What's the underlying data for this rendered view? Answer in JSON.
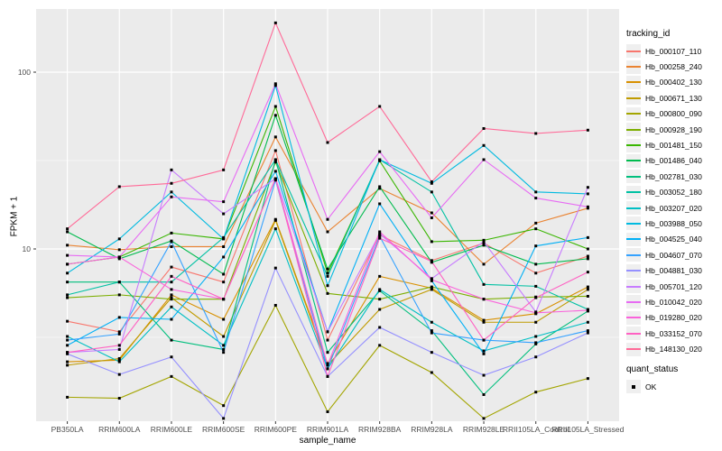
{
  "figure": {
    "background": "#FFFFFF",
    "panel_background": "#EBEBEB",
    "grid_color": "#FFFFFF",
    "tick_color": "#333333",
    "axis_text_color": "#4D4D4D",
    "point_color": "#000000"
  },
  "axes": {
    "y_title": "FPKM + 1",
    "x_title": "sample_name",
    "y_tick_labels": [
      "100",
      "10"
    ],
    "y_tick_values": [
      100,
      10
    ],
    "y_minor_values": [
      31.623,
      3.1623
    ]
  },
  "legend": {
    "tracking_title": "tracking_id",
    "quant_title": "quant_status",
    "quant_items": [
      {
        "label": "OK"
      }
    ]
  },
  "chart_data": {
    "type": "line",
    "title": "",
    "xlabel": "sample_name",
    "ylabel": "FPKM + 1",
    "y_scale": "log10",
    "ylim": [
      1,
      230
    ],
    "grid": true,
    "legend_position": "right",
    "x_categories": [
      "PB350LA",
      "RRIM600LA",
      "RRIM600LE",
      "RRIM600SE",
      "RRIM600PE",
      "RRIM901LA",
      "RRIM928BA",
      "RRIM928LA",
      "RRIM928LE",
      "RRII105LA_Control",
      "RRII105LA_Stressed"
    ],
    "series": [
      {
        "name": "Hb_000107_110",
        "color": "#F8766D",
        "values": [
          3.9,
          3.4,
          7.9,
          6.5,
          36,
          3.05,
          12,
          8.6,
          10.8,
          7.3,
          9.1
        ]
      },
      {
        "name": "Hb_000258_240",
        "color": "#EA8331",
        "values": [
          10.5,
          9.9,
          10.3,
          10.3,
          43,
          12.5,
          22,
          16,
          8.2,
          14,
          17
        ]
      },
      {
        "name": "Hb_000402_130",
        "color": "#D89000",
        "values": [
          2.3,
          2.35,
          5.5,
          4.0,
          14.7,
          2.25,
          7.0,
          6.0,
          3.95,
          4.3,
          6.1
        ]
      },
      {
        "name": "Hb_000671_130",
        "color": "#C09B00",
        "values": [
          2.2,
          2.4,
          5.3,
          3.2,
          14.5,
          2.2,
          4.55,
          5.9,
          3.85,
          3.85,
          5.9
        ]
      },
      {
        "name": "Hb_000800_090",
        "color": "#A3A500",
        "values": [
          1.45,
          1.43,
          1.9,
          1.3,
          4.8,
          1.2,
          2.85,
          2.0,
          1.1,
          1.55,
          1.85
        ]
      },
      {
        "name": "Hb_000928_190",
        "color": "#7CAE00",
        "values": [
          5.3,
          5.5,
          5.2,
          5.2,
          31,
          5.6,
          5.2,
          6.1,
          5.2,
          5.35,
          5.4
        ]
      },
      {
        "name": "Hb_001481_150",
        "color": "#39B600",
        "values": [
          8.2,
          9.0,
          12.3,
          11.4,
          64,
          7.3,
          31.5,
          11,
          11.2,
          13,
          10
        ]
      },
      {
        "name": "Hb_001486_040",
        "color": "#00BB4E",
        "values": [
          12.5,
          8.8,
          11.1,
          7.2,
          57,
          7.7,
          22.5,
          8.4,
          10.5,
          8.2,
          8.8
        ]
      },
      {
        "name": "Hb_002781_030",
        "color": "#00BF7D",
        "values": [
          6.5,
          6.5,
          3.05,
          2.7,
          32,
          2.6,
          5.8,
          3.45,
          1.5,
          2.9,
          4.45
        ]
      },
      {
        "name": "Hb_003052_180",
        "color": "#00C1A3",
        "values": [
          5.5,
          6.5,
          6.5,
          11.6,
          32,
          7.0,
          32,
          21,
          6.3,
          6.15,
          4.55
        ]
      },
      {
        "name": "Hb_003207_020",
        "color": "#00BFC4",
        "values": [
          3.2,
          2.3,
          4.7,
          2.85,
          13,
          2.1,
          5.9,
          3.85,
          2.65,
          3.2,
          3.85
        ]
      },
      {
        "name": "Hb_003988_050",
        "color": "#00BAE0",
        "values": [
          7.3,
          11.4,
          21,
          11.4,
          84,
          6.2,
          32,
          23.5,
          38.5,
          21,
          20.5
        ]
      },
      {
        "name": "Hb_004525_040",
        "color": "#00B0F6",
        "values": [
          2.85,
          4.1,
          4.0,
          9.0,
          27.5,
          3.4,
          18,
          6.6,
          2.55,
          10.4,
          11.6
        ]
      },
      {
        "name": "Hb_004607_070",
        "color": "#35A2FF",
        "values": [
          3.05,
          3.3,
          11.0,
          2.6,
          24.5,
          2.1,
          11.8,
          3.35,
          3.05,
          2.95,
          3.45
        ]
      },
      {
        "name": "Hb_004881_030",
        "color": "#9590FF",
        "values": [
          2.55,
          1.95,
          2.45,
          1.1,
          7.8,
          1.9,
          3.6,
          2.6,
          1.93,
          2.45,
          3.35
        ]
      },
      {
        "name": "Hb_005701_120",
        "color": "#C77CFF",
        "values": [
          2.6,
          2.7,
          28,
          15.8,
          25,
          3.4,
          12.2,
          6.8,
          11.0,
          4.4,
          22.3
        ]
      },
      {
        "name": "Hb_010042_020",
        "color": "#E76BF3",
        "values": [
          9.2,
          9.0,
          19.7,
          18.5,
          86,
          14.7,
          35.5,
          15,
          32,
          19.4,
          17.3
        ]
      },
      {
        "name": "Hb_019280_020",
        "color": "#FA62DB",
        "values": [
          8.2,
          9.0,
          5.9,
          5.2,
          25,
          2.2,
          12.5,
          6.7,
          5.2,
          4.35,
          4.5
        ]
      },
      {
        "name": "Hb_033152_070",
        "color": "#FF61C3",
        "values": [
          2.6,
          2.85,
          7.0,
          5.2,
          25,
          1.9,
          11.5,
          8.5,
          3.05,
          5.3,
          7.4
        ]
      },
      {
        "name": "Hb_148130_020",
        "color": "#FF6A98",
        "values": [
          13,
          22.5,
          23.5,
          28,
          190,
          40,
          64,
          24,
          48,
          45,
          47
        ]
      }
    ]
  }
}
